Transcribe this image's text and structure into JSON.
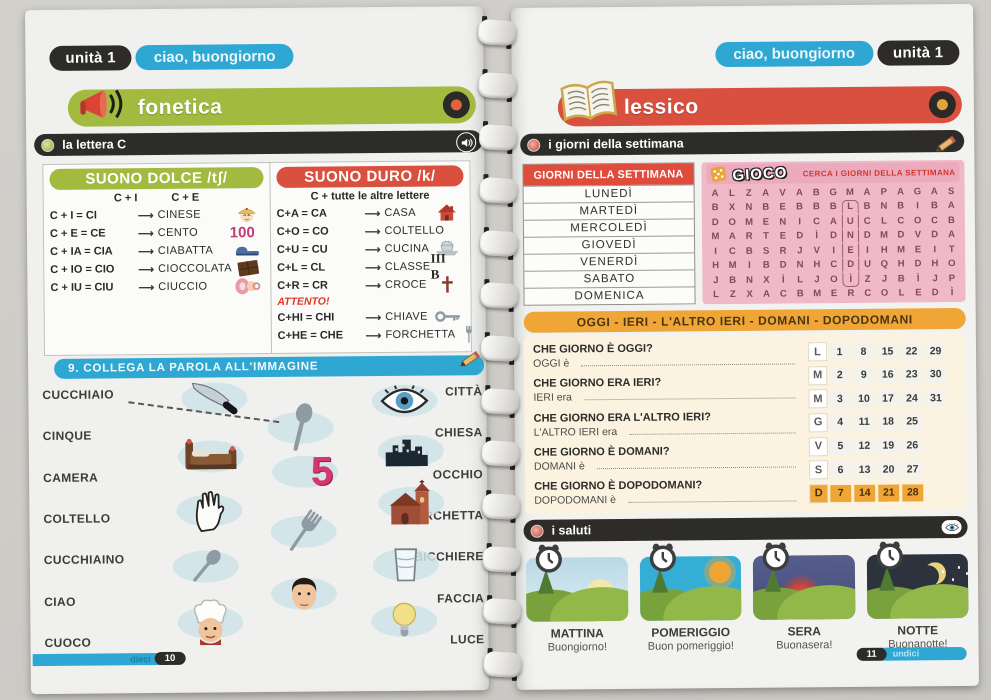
{
  "colors": {
    "green": "#a2ba40",
    "red": "#d9503f",
    "cyan": "#2fa7d3",
    "orange": "#f0a636",
    "pink": "#f0b9c8"
  },
  "left_page": {
    "unit_badge": "unità 1",
    "chapter_badge": "ciao, buongiorno",
    "section_title": "fonetica",
    "lesson_title": "la lettera C",
    "dolce": {
      "title": "SUONO DOLCE /tʃ/",
      "rule_a": "C + I",
      "rule_b": "C + E",
      "rows": [
        {
          "formula": "C + I = CI",
          "word": "CINESE",
          "icon": "#i-cinese"
        },
        {
          "formula": "C + E = CE",
          "word": "CENTO",
          "icon_text": "100",
          "icon_kind": "num"
        },
        {
          "formula": "C + IA = CIA",
          "word": "CIABATTA",
          "icon": "#i-slipper"
        },
        {
          "formula": "C + IO = CIO",
          "word": "CIOCCOLATA",
          "icon": "#i-chocolate"
        },
        {
          "formula": "C + IU = CIU",
          "word": "CIUCCIO",
          "icon": "#i-pacifier"
        }
      ]
    },
    "duro": {
      "title": "SUONO DURO /k/",
      "rule": "C + tutte le altre lettere",
      "rows": [
        {
          "formula": "C+A = CA",
          "word": "CASA",
          "icon": "#i-house"
        },
        {
          "formula": "C+O = CO",
          "word": "COLTELLO"
        },
        {
          "formula": "C+U = CU",
          "word": "CUCINA",
          "icon": "#i-pot"
        },
        {
          "formula": "C+L = CL",
          "word": "CLASSE",
          "icon_text": "III B",
          "icon_kind": "roman"
        },
        {
          "formula": "C+R = CR",
          "word": "CROCE",
          "icon": "#i-cross"
        }
      ],
      "warning": "ATTENTO!",
      "warning_rows": [
        {
          "formula": "C+HI = CHI",
          "word": "CHIAVE",
          "icon": "#i-key"
        },
        {
          "formula": "C+HE = CHE",
          "word": "FORCHETTA",
          "icon": "#i-fork"
        }
      ]
    },
    "exercise": {
      "title": "9. COLLEGA LA PAROLA ALL'IMMAGINE",
      "left_words": [
        "CUCCHIAIO",
        "CINQUE",
        "CAMERA",
        "COLTELLO",
        "CUCCHIAINO",
        "CIAO",
        "CUOCO"
      ],
      "right_words": [
        "CITTÀ",
        "CHIESA",
        "OCCHIO",
        "FORCHETTA",
        "BICCHIERE",
        "FACCIA",
        "LUCE"
      ],
      "images": [
        {
          "name": "knife",
          "icon": "#i-knife"
        },
        {
          "name": "eye",
          "icon": "#i-eye"
        },
        {
          "name": "spoon",
          "icon": "#i-spoon"
        },
        {
          "name": "bed",
          "icon": "#i-bed"
        },
        {
          "name": "city",
          "icon": "#i-city"
        },
        {
          "name": "five",
          "icon_text": "5"
        },
        {
          "name": "hand",
          "icon": "#i-hand"
        },
        {
          "name": "church",
          "icon": "#i-church"
        },
        {
          "name": "fork",
          "icon": "#i-fork"
        },
        {
          "name": "glass",
          "icon": "#i-glass"
        },
        {
          "name": "teaspoon",
          "icon": "#i-spoon"
        },
        {
          "name": "face",
          "icon": "#i-face"
        },
        {
          "name": "chef",
          "icon": "#i-chef"
        },
        {
          "name": "bulb",
          "icon": "#i-bulb"
        }
      ]
    },
    "footer": {
      "word": "dieci",
      "number": "10"
    }
  },
  "right_page": {
    "unit_badge": "unità 1",
    "chapter_badge": "ciao, buongiorno",
    "section_title": "lessico",
    "lesson_title": "i giorni della settimana",
    "days_table": {
      "header": "GIORNI DELLA SETTIMANA",
      "days": [
        "LUNEDÌ",
        "MARTEDÌ",
        "MERCOLEDÌ",
        "GIOVEDÌ",
        "VENERDÌ",
        "SABATO",
        "DOMENICA"
      ]
    },
    "wordsearch": {
      "game_label": "GIOCO",
      "instruction": "CERCA I GIORNI DELLA SETTIMANA",
      "grid": [
        [
          "A",
          "L",
          "Z",
          "A",
          "V",
          "A",
          "B",
          "G",
          "M",
          "A",
          "P",
          "A",
          "G",
          "A",
          "S"
        ],
        [
          "B",
          "X",
          "N",
          "B",
          "E",
          "B",
          "B",
          "B",
          "L",
          "B",
          "N",
          "B",
          "I",
          "B",
          "A"
        ],
        [
          "D",
          "O",
          "M",
          "E",
          "N",
          "I",
          "C",
          "A",
          "U",
          "C",
          "L",
          "C",
          "O",
          "C",
          "B"
        ],
        [
          "M",
          "A",
          "R",
          "T",
          "E",
          "D",
          "Ì",
          "D",
          "N",
          "D",
          "M",
          "D",
          "V",
          "D",
          "A"
        ],
        [
          "I",
          "C",
          "B",
          "S",
          "R",
          "J",
          "V",
          "I",
          "E",
          "I",
          "H",
          "M",
          "E",
          "I",
          "T"
        ],
        [
          "H",
          "M",
          "I",
          "B",
          "D",
          "N",
          "H",
          "C",
          "D",
          "U",
          "Q",
          "H",
          "D",
          "H",
          "O"
        ],
        [
          "J",
          "B",
          "N",
          "X",
          "Ì",
          "L",
          "J",
          "O",
          "Ì",
          "Z",
          "J",
          "B",
          "Ì",
          "J",
          "P"
        ],
        [
          "L",
          "Z",
          "X",
          "A",
          "C",
          "B",
          "M",
          "E",
          "R",
          "C",
          "O",
          "L",
          "E",
          "D",
          "Ì"
        ]
      ]
    },
    "time_words_bar": "OGGI  -  IERI  -  L'ALTRO IERI  -  DOMANI  -  DOPODOMANI",
    "questions": [
      {
        "q": "CHE GIORNO È OGGI?",
        "a": "OGGI è"
      },
      {
        "q": "CHE GIORNO ERA IERI?",
        "a": "IERI era"
      },
      {
        "q": "CHE GIORNO ERA L'ALTRO IERI?",
        "a": "L'ALTRO IERI era"
      },
      {
        "q": "CHE GIORNO È DOMANI?",
        "a": "DOMANI è"
      },
      {
        "q": "CHE GIORNO È DOPODOMANI?",
        "a": "DOPODOMANI è"
      }
    ],
    "calendar": {
      "rows": [
        {
          "label": "L",
          "days": [
            "1",
            "8",
            "15",
            "22",
            "29"
          ]
        },
        {
          "label": "M",
          "days": [
            "2",
            "9",
            "16",
            "23",
            "30"
          ]
        },
        {
          "label": "M",
          "days": [
            "3",
            "10",
            "17",
            "24",
            "31"
          ]
        },
        {
          "label": "G",
          "days": [
            "4",
            "11",
            "18",
            "25"
          ]
        },
        {
          "label": "V",
          "days": [
            "5",
            "12",
            "19",
            "26"
          ]
        },
        {
          "label": "S",
          "days": [
            "6",
            "13",
            "20",
            "27"
          ]
        },
        {
          "label": "D",
          "days": [
            "7",
            "14",
            "21",
            "28"
          ]
        }
      ]
    },
    "saluti": {
      "title": "i saluti",
      "cards": [
        {
          "time": "MATTINA",
          "greeting": "Buongiorno!",
          "scene": "morning"
        },
        {
          "time": "POMERIGGIO",
          "greeting": "Buon pomeriggio!",
          "scene": "afternoon"
        },
        {
          "time": "SERA",
          "greeting": "Buonasera!",
          "scene": "evening"
        },
        {
          "time": "NOTTE",
          "greeting": "Buonanotte!",
          "scene": "night"
        }
      ]
    },
    "footer": {
      "number": "11",
      "word": "undici"
    }
  }
}
